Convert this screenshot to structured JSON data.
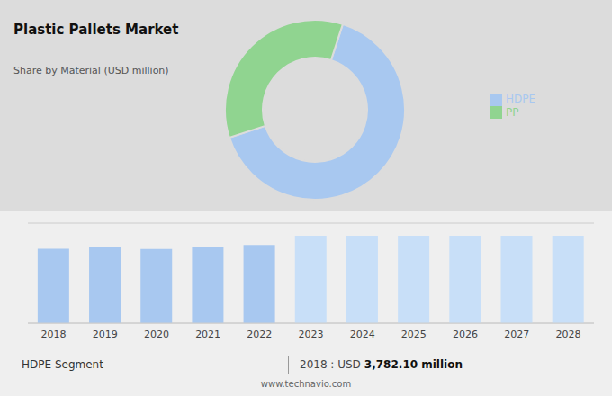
{
  "chart_data": [
    {
      "type": "pie",
      "title": "Plastic Pallets Market",
      "subtitle": "Share by Material (USD million)",
      "categories": [
        "HDPE",
        "PP"
      ],
      "values": [
        65,
        35
      ],
      "colors": [
        "#a8c8f0",
        "#90d490"
      ],
      "legend": "right"
    },
    {
      "type": "bar",
      "categories": [
        "2018",
        "2019",
        "2020",
        "2021",
        "2022",
        "2023",
        "2024",
        "2025",
        "2026",
        "2027",
        "2028"
      ],
      "values": [
        3782,
        3900,
        3780,
        3870,
        3980,
        4457.6,
        4457.6,
        4457.6,
        4457.6,
        4457.6,
        4457.6
      ],
      "colors": [
        "#a8c8f0",
        "#a8c8f0",
        "#a8c8f0",
        "#a8c8f0",
        "#a8c8f0",
        "#c8dff8",
        "#c8dff8",
        "#c8dff8",
        "#c8dff8",
        "#c8dff8",
        "#c8dff8"
      ],
      "ylim": [
        0,
        5094.4
      ],
      "yticks": [
        0,
        1273.6,
        2547.2,
        3820.8,
        5094.4
      ],
      "grid": true,
      "tick_labels": "x",
      "annotations": [
        "HDPE Segment",
        "2018 : USD",
        "3,782.10 million",
        "www.technavio.com"
      ]
    }
  ]
}
